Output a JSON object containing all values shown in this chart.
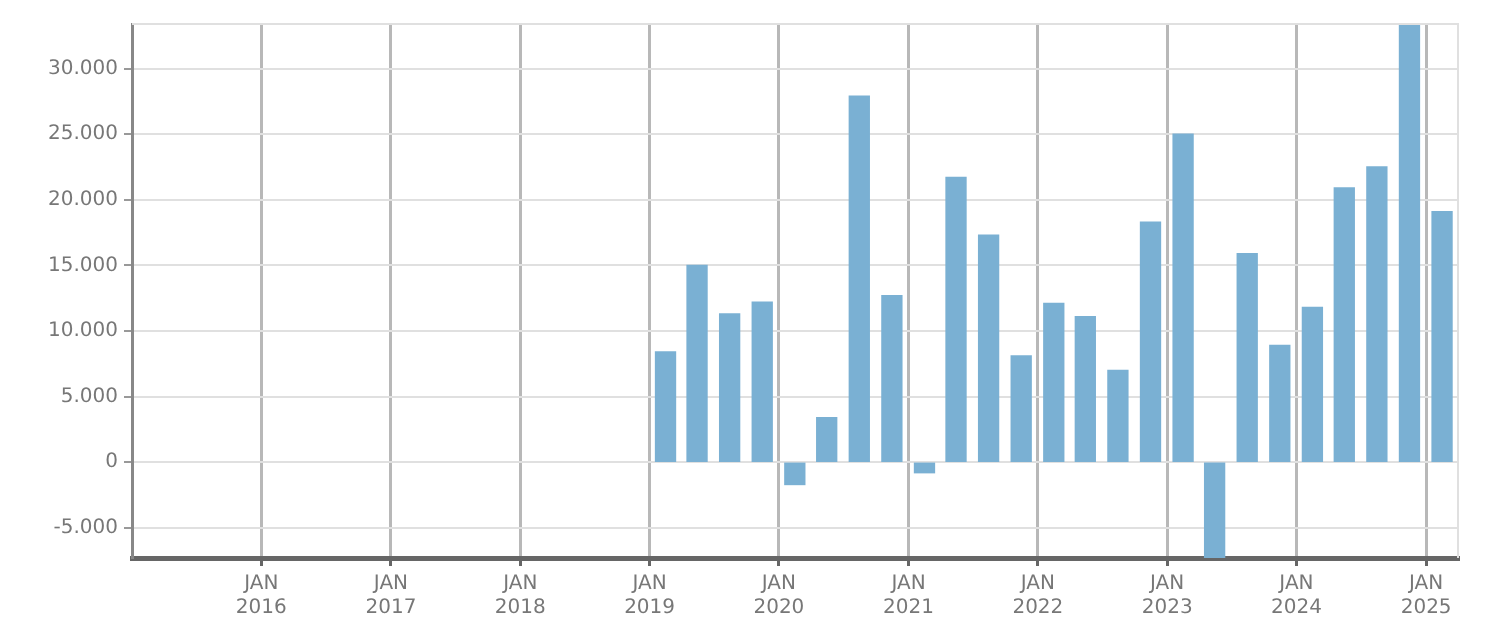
{
  "chart_data": {
    "type": "bar",
    "x": [
      "2019-02-15",
      "2019-05-15",
      "2019-08-15",
      "2019-11-15",
      "2020-02-15",
      "2020-05-15",
      "2020-08-15",
      "2020-11-15",
      "2021-02-15",
      "2021-05-15",
      "2021-08-15",
      "2021-11-15",
      "2022-02-15",
      "2022-05-15",
      "2022-08-15",
      "2022-11-15",
      "2023-02-15",
      "2023-05-15",
      "2023-08-15",
      "2023-11-15",
      "2024-02-15",
      "2024-05-15",
      "2024-08-15",
      "2024-11-15",
      "2025-02-15"
    ],
    "values": [
      8400,
      15000,
      11300,
      12200,
      -1700,
      3400,
      27900,
      12700,
      -800,
      21700,
      17300,
      8100,
      12100,
      11100,
      7000,
      18300,
      25000,
      -7300,
      15900,
      8900,
      11800,
      20900,
      22500,
      33400,
      19100
    ],
    "color": "#7ab0d3",
    "xlim": [
      "2015-01-01",
      "2025-04-01"
    ],
    "xticks": [
      {
        "value": "2016-01-01",
        "label": "JAN 2016"
      },
      {
        "value": "2017-01-01",
        "label": "JAN 2017"
      },
      {
        "value": "2018-01-01",
        "label": "JAN 2018"
      },
      {
        "value": "2019-01-01",
        "label": "JAN 2019"
      },
      {
        "value": "2020-01-01",
        "label": "JAN 2020"
      },
      {
        "value": "2021-01-01",
        "label": "JAN 2021"
      },
      {
        "value": "2022-01-01",
        "label": "JAN 2022"
      },
      {
        "value": "2023-01-01",
        "label": "JAN 2023"
      },
      {
        "value": "2024-01-01",
        "label": "JAN 2024"
      },
      {
        "value": "2025-01-01",
        "label": "JAN 2025"
      }
    ],
    "ylim": [
      -7300,
      33400
    ],
    "yticks": [
      {
        "value": -5000,
        "label": "-5.000"
      },
      {
        "value": 0,
        "label": "0"
      },
      {
        "value": 5000,
        "label": "5.000"
      },
      {
        "value": 10000,
        "label": "10.000"
      },
      {
        "value": 15000,
        "label": "15.000"
      },
      {
        "value": 20000,
        "label": "20.000"
      },
      {
        "value": 25000,
        "label": "25.000"
      },
      {
        "value": 30000,
        "label": "30.000"
      }
    ],
    "grid": true,
    "legend": false
  }
}
